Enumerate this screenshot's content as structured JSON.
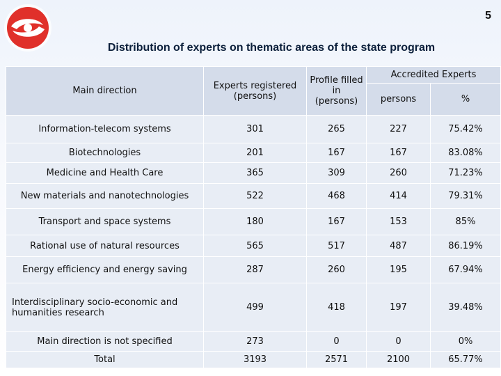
{
  "slide": {
    "page_number": "5",
    "title": "Distribution of experts on thematic areas of the state program",
    "logo_icon": "red-swirl-logo-icon"
  },
  "table": {
    "headers": {
      "main_direction": "Main direction",
      "experts_registered": "Experts registered (persons)",
      "profile_filled": "Profile filled in (persons)",
      "accredited": "Accredited Experts",
      "persons": "persons",
      "percent": "%"
    },
    "rows": [
      {
        "direction": "Information-telecom systems",
        "registered": "301",
        "profile": "265",
        "persons": "227",
        "percent": "75.42%"
      },
      {
        "direction": "Biotechnologies",
        "registered": "201",
        "profile": "167",
        "persons": "167",
        "percent": "83.08%"
      },
      {
        "direction": "Medicine and Health Care",
        "registered": "365",
        "profile": "309",
        "persons": "260",
        "percent": "71.23%"
      },
      {
        "direction": "New materials and nanotechnologies",
        "registered": "522",
        "profile": "468",
        "persons": "414",
        "percent": "79.31%"
      },
      {
        "direction": "Transport and space systems",
        "registered": "180",
        "profile": "167",
        "persons": "153",
        "percent": "85%"
      },
      {
        "direction": "Rational use of natural resources",
        "registered": "565",
        "profile": "517",
        "persons": "487",
        "percent": "86.19%"
      },
      {
        "direction": "Energy efficiency and energy saving",
        "registered": "287",
        "profile": "260",
        "persons": "195",
        "percent": "67.94%"
      },
      {
        "direction": "Interdisciplinary socio-economic and humanities research",
        "registered": "499",
        "profile": "418",
        "persons": "197",
        "percent": "39.48%"
      },
      {
        "direction": "Main direction is not specified",
        "registered": "273",
        "profile": "0",
        "persons": "0",
        "percent": "0%"
      },
      {
        "direction": "Total",
        "registered": "3193",
        "profile": "2571",
        "persons": "2100",
        "percent": "65.77%"
      }
    ]
  },
  "colors": {
    "header_bg": "#d4dcea",
    "row_bg": "#e8edf5",
    "logo_red": "#e0302a"
  }
}
